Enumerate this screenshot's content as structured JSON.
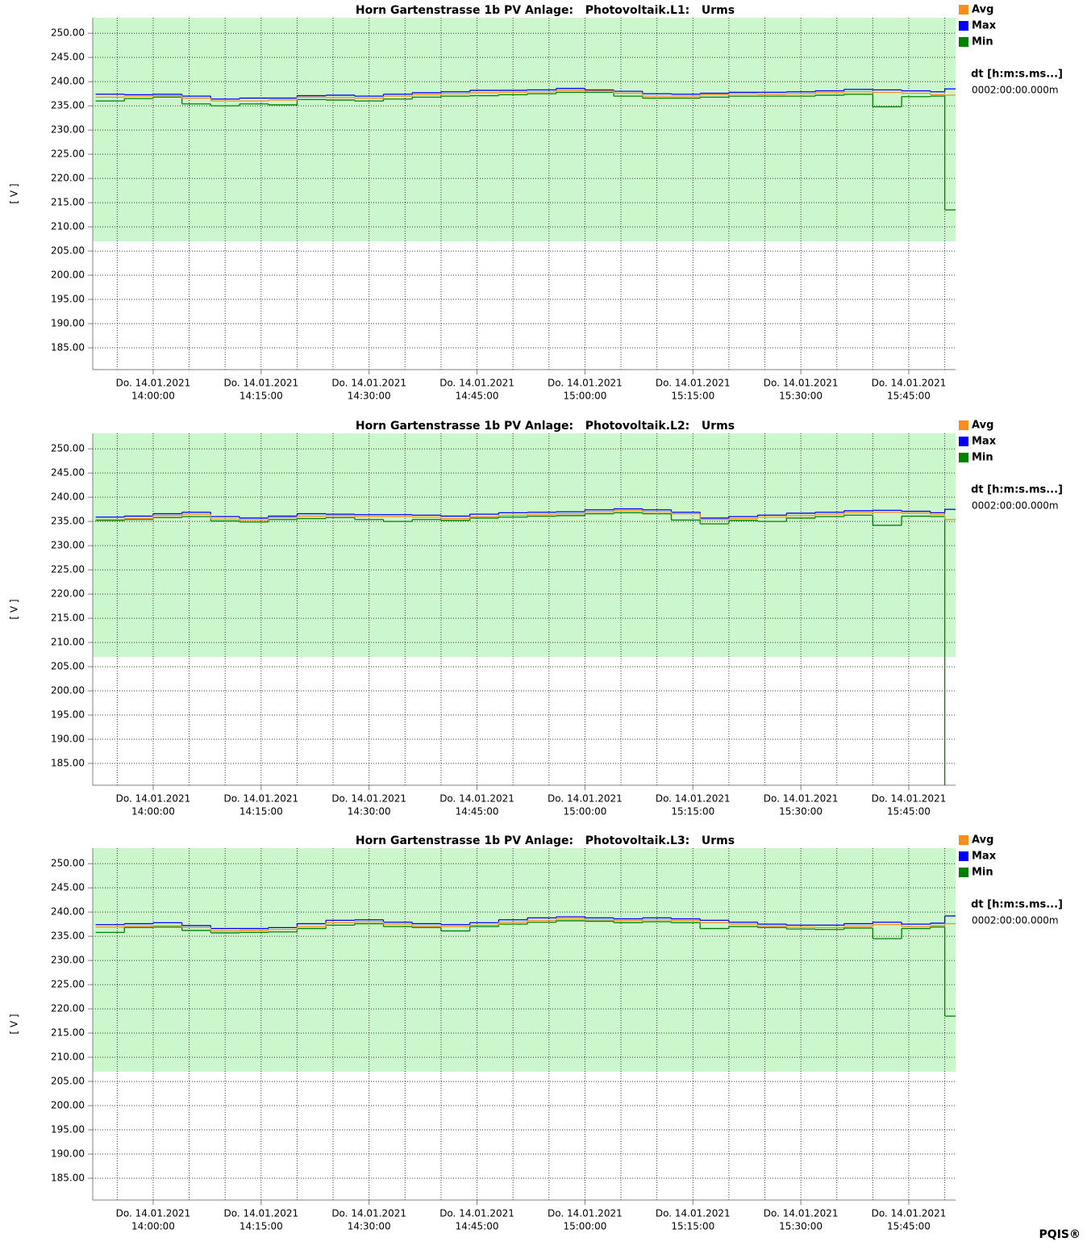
{
  "footer": "PQIS®",
  "chart_data": [
    {
      "type": "step",
      "title": "Horn Gartenstrasse 1b PV Anlage:   Photovoltaik.L1:   Urms",
      "y_label": "[ V ]",
      "interval_label": "dt [h:m:s.ms...]",
      "interval_value": "0002:00:00.000m",
      "x": [
        "13:52:00",
        "13:56:00",
        "14:00:00",
        "14:04:00",
        "14:08:00",
        "14:12:00",
        "14:16:00",
        "14:20:00",
        "14:24:00",
        "14:28:00",
        "14:32:00",
        "14:36:00",
        "14:40:00",
        "14:44:00",
        "14:48:00",
        "14:52:00",
        "14:56:00",
        "15:00:00",
        "15:04:00",
        "15:08:00",
        "15:12:00",
        "15:16:00",
        "15:20:00",
        "15:24:00",
        "15:28:00",
        "15:32:00",
        "15:36:00",
        "15:40:00",
        "15:44:00",
        "15:48:00",
        "15:50:00"
      ],
      "xlim": [
        "13:51:36",
        "15:51:30"
      ],
      "xticks": [
        {
          "value": "14:00:00",
          "label": [
            "Do. 14.01.2021",
            "14:00:00"
          ]
        },
        {
          "value": "14:15:00",
          "label": [
            "Do. 14.01.2021",
            "14:15:00"
          ]
        },
        {
          "value": "14:30:00",
          "label": [
            "Do. 14.01.2021",
            "14:30:00"
          ]
        },
        {
          "value": "14:45:00",
          "label": [
            "Do. 14.01.2021",
            "14:45:00"
          ]
        },
        {
          "value": "15:00:00",
          "label": [
            "Do. 14.01.2021",
            "15:00:00"
          ]
        },
        {
          "value": "15:15:00",
          "label": [
            "Do. 14.01.2021",
            "15:15:00"
          ]
        },
        {
          "value": "15:30:00",
          "label": [
            "Do. 14.01.2021",
            "15:30:00"
          ]
        },
        {
          "value": "15:45:00",
          "label": [
            "Do. 14.01.2021",
            "15:45:00"
          ]
        }
      ],
      "xgrid": [
        "13:55:00",
        "14:00:00",
        "14:05:00",
        "14:10:00",
        "14:15:00",
        "14:20:00",
        "14:25:00",
        "14:30:00",
        "14:35:00",
        "14:40:00",
        "14:45:00",
        "14:50:00",
        "14:55:00",
        "15:00:00",
        "15:05:00",
        "15:10:00",
        "15:15:00",
        "15:20:00",
        "15:25:00",
        "15:30:00",
        "15:35:00",
        "15:40:00",
        "15:45:00",
        "15:50:00"
      ],
      "ylim": [
        180.5,
        253.2
      ],
      "yticks": [
        {
          "value": 185,
          "label": "185.00"
        },
        {
          "value": 190,
          "label": "190.00"
        },
        {
          "value": 195,
          "label": "195.00"
        },
        {
          "value": 200,
          "label": "200.00"
        },
        {
          "value": 205,
          "label": "205.00"
        },
        {
          "value": 210,
          "label": "210.00"
        },
        {
          "value": 215,
          "label": "215.00"
        },
        {
          "value": 220,
          "label": "220.00"
        },
        {
          "value": 225,
          "label": "225.00"
        },
        {
          "value": 230,
          "label": "230.00"
        },
        {
          "value": 235,
          "label": "235.00"
        },
        {
          "value": 240,
          "label": "240.00"
        },
        {
          "value": 245,
          "label": "245.00"
        },
        {
          "value": 250,
          "label": "250.00"
        }
      ],
      "grid": true,
      "limit_band": {
        "low": 207,
        "high": 253.2,
        "color": "#ccf7cc"
      },
      "series": [
        {
          "name": "Avg",
          "color": "#ff8c1a",
          "values": [
            236.8,
            237.0,
            237.1,
            236.6,
            236.0,
            236.0,
            236.2,
            236.8,
            236.7,
            236.6,
            237.0,
            237.3,
            237.5,
            237.7,
            237.8,
            237.9,
            238.2,
            238.1,
            237.6,
            237.0,
            237.0,
            237.3,
            237.5,
            237.4,
            237.5,
            237.7,
            237.9,
            237.8,
            237.6,
            237.3,
            237.2
          ]
        },
        {
          "name": "Max",
          "color": "#0000ff",
          "values": [
            237.4,
            237.3,
            237.4,
            237.0,
            236.4,
            236.6,
            236.6,
            237.1,
            237.2,
            237.0,
            237.4,
            237.7,
            237.9,
            238.2,
            238.2,
            238.3,
            238.6,
            238.3,
            238.0,
            237.5,
            237.4,
            237.6,
            237.8,
            237.8,
            237.9,
            238.1,
            238.4,
            238.3,
            238.1,
            237.9,
            238.5
          ]
        },
        {
          "name": "Min",
          "color": "#008000",
          "values": [
            236.0,
            236.5,
            236.8,
            235.4,
            235.0,
            235.4,
            235.2,
            236.3,
            236.2,
            236.0,
            236.4,
            236.8,
            237.0,
            237.1,
            237.3,
            237.5,
            237.8,
            237.8,
            237.0,
            236.6,
            236.6,
            236.8,
            237.0,
            237.0,
            237.0,
            237.2,
            237.4,
            234.8,
            236.9,
            237.0,
            213.5
          ]
        }
      ]
    },
    {
      "type": "step",
      "title": "Horn Gartenstrasse 1b PV Anlage:   Photovoltaik.L2:   Urms",
      "y_label": "[ V ]",
      "interval_label": "dt [h:m:s.ms...]",
      "interval_value": "0002:00:00.000m",
      "x": [
        "13:52:00",
        "13:56:00",
        "14:00:00",
        "14:04:00",
        "14:08:00",
        "14:12:00",
        "14:16:00",
        "14:20:00",
        "14:24:00",
        "14:28:00",
        "14:32:00",
        "14:36:00",
        "14:40:00",
        "14:44:00",
        "14:48:00",
        "14:52:00",
        "14:56:00",
        "15:00:00",
        "15:04:00",
        "15:08:00",
        "15:12:00",
        "15:16:00",
        "15:20:00",
        "15:24:00",
        "15:28:00",
        "15:32:00",
        "15:36:00",
        "15:40:00",
        "15:44:00",
        "15:48:00",
        "15:50:00"
      ],
      "xlim": [
        "13:51:36",
        "15:51:30"
      ],
      "xticks": [
        {
          "value": "14:00:00",
          "label": [
            "Do. 14.01.2021",
            "14:00:00"
          ]
        },
        {
          "value": "14:15:00",
          "label": [
            "Do. 14.01.2021",
            "14:15:00"
          ]
        },
        {
          "value": "14:30:00",
          "label": [
            "Do. 14.01.2021",
            "14:30:00"
          ]
        },
        {
          "value": "14:45:00",
          "label": [
            "Do. 14.01.2021",
            "14:45:00"
          ]
        },
        {
          "value": "15:00:00",
          "label": [
            "Do. 14.01.2021",
            "15:00:00"
          ]
        },
        {
          "value": "15:15:00",
          "label": [
            "Do. 14.01.2021",
            "15:15:00"
          ]
        },
        {
          "value": "15:30:00",
          "label": [
            "Do. 14.01.2021",
            "15:30:00"
          ]
        },
        {
          "value": "15:45:00",
          "label": [
            "Do. 14.01.2021",
            "15:45:00"
          ]
        }
      ],
      "xgrid": [
        "13:55:00",
        "14:00:00",
        "14:05:00",
        "14:10:00",
        "14:15:00",
        "14:20:00",
        "14:25:00",
        "14:30:00",
        "14:35:00",
        "14:40:00",
        "14:45:00",
        "14:50:00",
        "14:55:00",
        "15:00:00",
        "15:05:00",
        "15:10:00",
        "15:15:00",
        "15:20:00",
        "15:25:00",
        "15:30:00",
        "15:35:00",
        "15:40:00",
        "15:45:00",
        "15:50:00"
      ],
      "ylim": [
        180.5,
        253.2
      ],
      "yticks": [
        {
          "value": 185,
          "label": "185.00"
        },
        {
          "value": 190,
          "label": "190.00"
        },
        {
          "value": 195,
          "label": "195.00"
        },
        {
          "value": 200,
          "label": "200.00"
        },
        {
          "value": 205,
          "label": "205.00"
        },
        {
          "value": 210,
          "label": "210.00"
        },
        {
          "value": 215,
          "label": "215.00"
        },
        {
          "value": 220,
          "label": "220.00"
        },
        {
          "value": 225,
          "label": "225.00"
        },
        {
          "value": 230,
          "label": "230.00"
        },
        {
          "value": 235,
          "label": "235.00"
        },
        {
          "value": 240,
          "label": "240.00"
        },
        {
          "value": 245,
          "label": "245.00"
        },
        {
          "value": 250,
          "label": "250.00"
        }
      ],
      "grid": true,
      "limit_band": {
        "low": 207,
        "high": 253.2,
        "color": "#ccf7cc"
      },
      "series": [
        {
          "name": "Avg",
          "color": "#ff8c1a",
          "values": [
            235.4,
            235.6,
            236.2,
            236.5,
            235.5,
            235.3,
            235.8,
            236.1,
            236.2,
            236.0,
            236.0,
            235.9,
            235.6,
            236.0,
            236.3,
            236.5,
            236.6,
            237.0,
            237.2,
            237.0,
            236.6,
            235.4,
            235.6,
            235.9,
            236.2,
            236.5,
            236.8,
            236.9,
            236.7,
            236.4,
            235.4
          ]
        },
        {
          "name": "Max",
          "color": "#0000ff",
          "values": [
            235.9,
            236.1,
            236.6,
            236.9,
            236.0,
            235.7,
            236.1,
            236.6,
            236.5,
            236.4,
            236.4,
            236.3,
            236.1,
            236.5,
            236.8,
            236.9,
            237.0,
            237.4,
            237.6,
            237.4,
            236.9,
            235.7,
            236.0,
            236.3,
            236.7,
            236.9,
            237.2,
            237.3,
            237.1,
            236.8,
            237.5
          ]
        },
        {
          "name": "Min",
          "color": "#008000",
          "values": [
            235.2,
            235.4,
            235.8,
            236.0,
            235.1,
            234.9,
            235.4,
            235.6,
            235.8,
            235.4,
            235.0,
            235.4,
            235.2,
            235.7,
            235.9,
            236.1,
            236.2,
            236.6,
            236.8,
            236.6,
            235.3,
            234.5,
            235.2,
            235.0,
            235.7,
            236.0,
            236.3,
            234.2,
            236.1,
            236.0,
            175
          ]
        }
      ]
    },
    {
      "type": "step",
      "title": "Horn Gartenstrasse 1b PV Anlage:   Photovoltaik.L3:   Urms",
      "y_label": "[ V ]",
      "interval_label": "dt [h:m:s.ms...]",
      "interval_value": "0002:00:00.000m",
      "x": [
        "13:52:00",
        "13:56:00",
        "14:00:00",
        "14:04:00",
        "14:08:00",
        "14:12:00",
        "14:16:00",
        "14:20:00",
        "14:24:00",
        "14:28:00",
        "14:32:00",
        "14:36:00",
        "14:40:00",
        "14:44:00",
        "14:48:00",
        "14:52:00",
        "14:56:00",
        "15:00:00",
        "15:04:00",
        "15:08:00",
        "15:12:00",
        "15:16:00",
        "15:20:00",
        "15:24:00",
        "15:28:00",
        "15:32:00",
        "15:36:00",
        "15:40:00",
        "15:44:00",
        "15:48:00",
        "15:50:00"
      ],
      "xlim": [
        "13:51:36",
        "15:51:30"
      ],
      "xticks": [
        {
          "value": "14:00:00",
          "label": [
            "Do. 14.01.2021",
            "14:00:00"
          ]
        },
        {
          "value": "14:15:00",
          "label": [
            "Do. 14.01.2021",
            "14:15:00"
          ]
        },
        {
          "value": "14:30:00",
          "label": [
            "Do. 14.01.2021",
            "14:30:00"
          ]
        },
        {
          "value": "14:45:00",
          "label": [
            "Do. 14.01.2021",
            "14:45:00"
          ]
        },
        {
          "value": "15:00:00",
          "label": [
            "Do. 14.01.2021",
            "15:00:00"
          ]
        },
        {
          "value": "15:15:00",
          "label": [
            "Do. 14.01.2021",
            "15:15:00"
          ]
        },
        {
          "value": "15:30:00",
          "label": [
            "Do. 14.01.2021",
            "15:30:00"
          ]
        },
        {
          "value": "15:45:00",
          "label": [
            "Do. 14.01.2021",
            "15:45:00"
          ]
        }
      ],
      "xgrid": [
        "13:55:00",
        "14:00:00",
        "14:05:00",
        "14:10:00",
        "14:15:00",
        "14:20:00",
        "14:25:00",
        "14:30:00",
        "14:35:00",
        "14:40:00",
        "14:45:00",
        "14:50:00",
        "14:55:00",
        "15:00:00",
        "15:05:00",
        "15:10:00",
        "15:15:00",
        "15:20:00",
        "15:25:00",
        "15:30:00",
        "15:35:00",
        "15:40:00",
        "15:45:00",
        "15:50:00"
      ],
      "ylim": [
        180.5,
        253.2
      ],
      "yticks": [
        {
          "value": 185,
          "label": "185.00"
        },
        {
          "value": 190,
          "label": "190.00"
        },
        {
          "value": 195,
          "label": "195.00"
        },
        {
          "value": 200,
          "label": "200.00"
        },
        {
          "value": 205,
          "label": "205.00"
        },
        {
          "value": 210,
          "label": "210.00"
        },
        {
          "value": 215,
          "label": "215.00"
        },
        {
          "value": 220,
          "label": "220.00"
        },
        {
          "value": 225,
          "label": "225.00"
        },
        {
          "value": 230,
          "label": "230.00"
        },
        {
          "value": 235,
          "label": "235.00"
        },
        {
          "value": 240,
          "label": "240.00"
        },
        {
          "value": 245,
          "label": "245.00"
        },
        {
          "value": 250,
          "label": "250.00"
        }
      ],
      "grid": true,
      "limit_band": {
        "low": 207,
        "high": 253.2,
        "color": "#ccf7cc"
      },
      "series": [
        {
          "name": "Avg",
          "color": "#ff8c1a",
          "values": [
            236.9,
            237.1,
            237.2,
            236.8,
            236.1,
            236.2,
            236.4,
            237.0,
            237.8,
            238.0,
            237.5,
            237.1,
            237.0,
            237.3,
            237.9,
            238.3,
            238.6,
            238.4,
            238.2,
            238.4,
            238.2,
            237.8,
            237.5,
            237.1,
            236.9,
            236.8,
            237.1,
            237.4,
            237.0,
            237.2,
            237.6
          ]
        },
        {
          "name": "Max",
          "color": "#0000ff",
          "values": [
            237.4,
            237.6,
            237.8,
            237.2,
            236.6,
            236.6,
            236.8,
            237.6,
            238.3,
            238.4,
            237.9,
            237.6,
            237.4,
            237.8,
            238.4,
            238.8,
            239.0,
            238.8,
            238.6,
            238.8,
            238.6,
            238.3,
            237.9,
            237.5,
            237.3,
            237.3,
            237.6,
            237.9,
            237.5,
            237.7,
            239.2
          ]
        },
        {
          "name": "Min",
          "color": "#008000",
          "values": [
            235.8,
            236.8,
            236.9,
            236.2,
            235.7,
            235.8,
            235.9,
            236.6,
            237.3,
            237.6,
            237.0,
            236.8,
            236.1,
            237.0,
            237.5,
            237.9,
            238.2,
            238.1,
            237.8,
            238.0,
            237.8,
            236.6,
            237.0,
            236.8,
            236.5,
            236.4,
            236.7,
            234.5,
            236.6,
            236.9,
            218.5
          ]
        }
      ]
    }
  ]
}
